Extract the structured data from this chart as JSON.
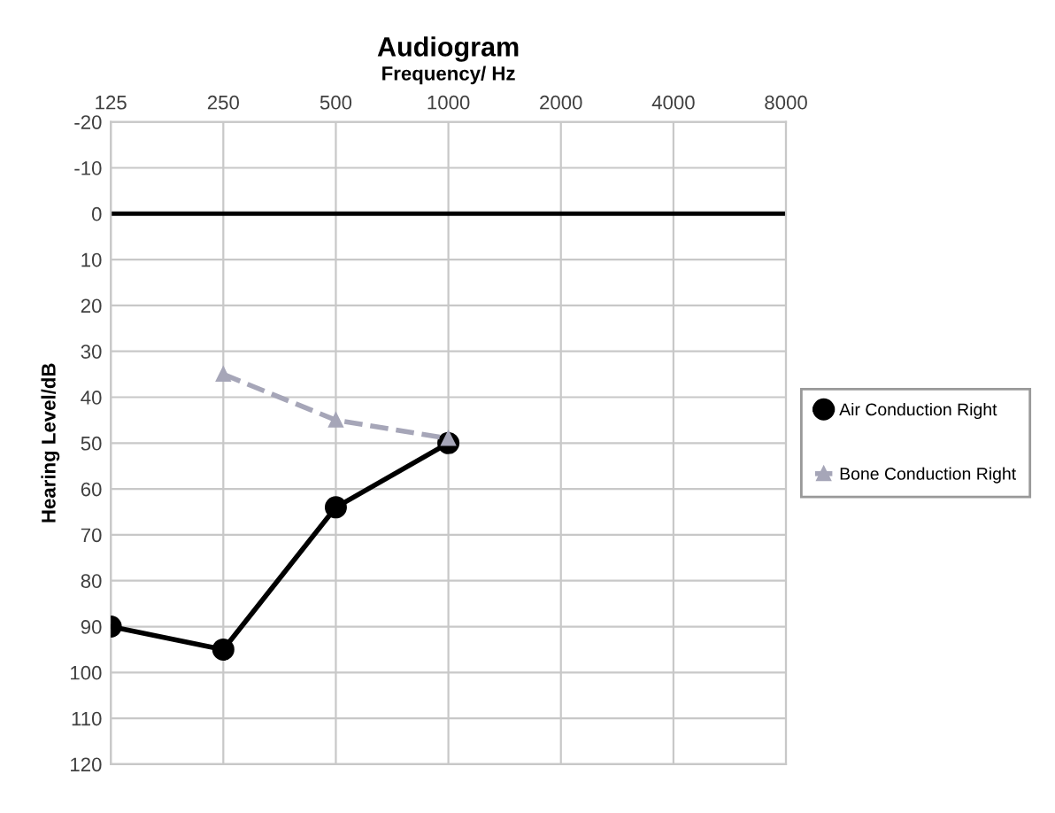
{
  "chart_data": {
    "type": "line",
    "title": "Audiogram",
    "xlabel": "Frequency/ Hz",
    "ylabel": "Hearing Level/dB",
    "categories": [
      "125",
      "250",
      "500",
      "1000",
      "2000",
      "4000",
      "8000"
    ],
    "series": [
      {
        "name": "Air Conduction Right",
        "color": "#000000",
        "marker": "circle",
        "line_style": "solid",
        "values": [
          90,
          95,
          64,
          50,
          null,
          null,
          null
        ]
      },
      {
        "name": "Bone Conduction Right",
        "color": "#a6a6b8",
        "marker": "triangle",
        "line_style": "dashed",
        "values": [
          null,
          35,
          45,
          49,
          null,
          null,
          null
        ]
      }
    ],
    "ylim": [
      120,
      -20
    ],
    "yticks": [
      -20,
      -10,
      0,
      10,
      20,
      30,
      40,
      50,
      60,
      70,
      80,
      90,
      100,
      110,
      120
    ],
    "ref_lines": [
      {
        "axis": "y",
        "value": 0,
        "color": "#000000"
      }
    ],
    "grid": true,
    "legend": "right"
  }
}
